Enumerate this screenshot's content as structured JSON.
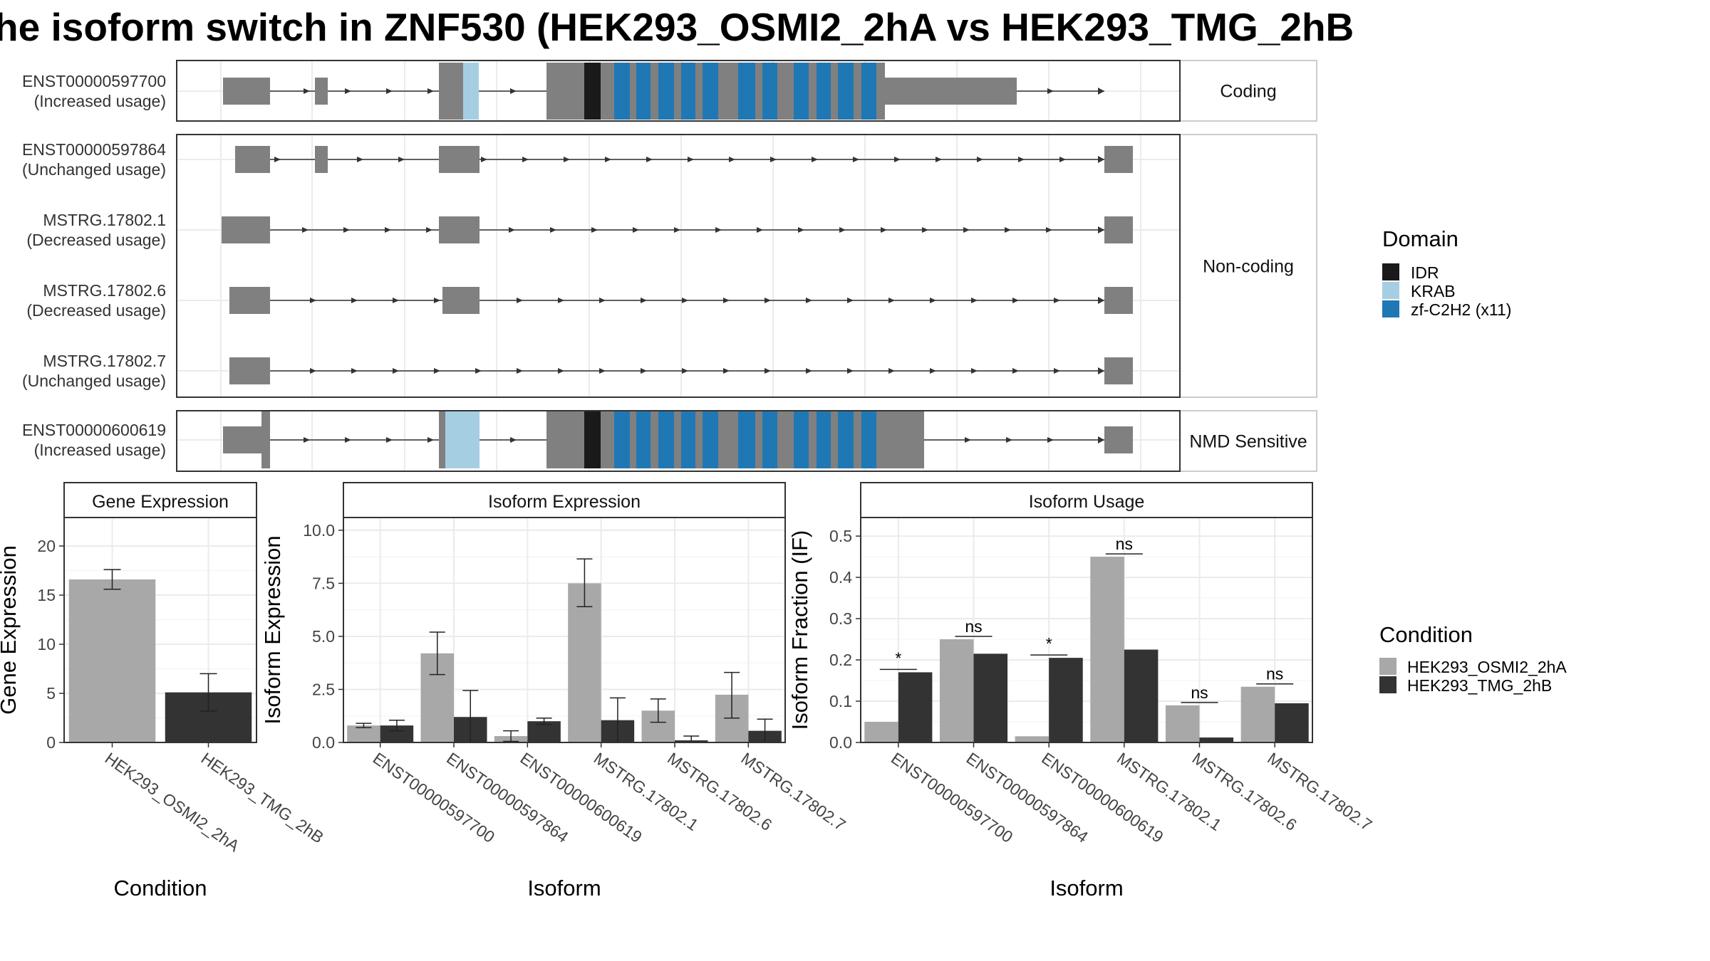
{
  "title": "he isoform switch in ZNF530 (HEK293_OSMI2_2hA vs HEK293_TMG_2hB",
  "colors": {
    "exon": "#808080",
    "intron": "#333333",
    "IDR": "#1a1a1a",
    "KRAB": "#a6cee3",
    "zf-C2H2 (x11)": "#1f78b4",
    "HEK293_OSMI2_2hA": "#a8a8a8",
    "HEK293_TMG_2hB": "#333333",
    "grid": "#ebebeb",
    "panel_border": "#333333"
  },
  "structure": {
    "facets": [
      {
        "label": "Coding",
        "isoforms": [
          {
            "id": "ENST00000597700",
            "usage": "(Increased usage)",
            "domain_kind": "coding"
          }
        ]
      },
      {
        "label": "Non-coding",
        "isoforms": [
          {
            "id": "ENST00000597864",
            "usage": "(Unchanged usage)",
            "domain_kind": "none"
          },
          {
            "id": "MSTRG.17802.1",
            "usage": "(Decreased usage)",
            "domain_kind": "none"
          },
          {
            "id": "MSTRG.17802.6",
            "usage": "(Decreased usage)",
            "domain_kind": "none"
          },
          {
            "id": "MSTRG.17802.7",
            "usage": "(Unchanged usage)",
            "domain_kind": "none"
          }
        ]
      },
      {
        "label": "NMD Sensitive",
        "isoforms": [
          {
            "id": "ENST00000600619",
            "usage": "(Increased usage)",
            "domain_kind": "nmd"
          }
        ]
      }
    ],
    "domain_legend": {
      "title": "Domain",
      "items": [
        "IDR",
        "KRAB",
        "zf-C2H2 (x11)"
      ]
    }
  },
  "condition_legend": {
    "title": "Condition",
    "items": [
      "HEK293_OSMI2_2hA",
      "HEK293_TMG_2hB"
    ]
  },
  "chart_data": [
    {
      "type": "bar",
      "title": "Gene Expression",
      "xlabel": "Condition",
      "ylabel": "Gene Expression",
      "categories": [
        "HEK293_OSMI2_2hA",
        "HEK293_TMG_2hB"
      ],
      "values": [
        16.6,
        5.1
      ],
      "error_low": [
        15.6,
        3.2
      ],
      "error_high": [
        17.6,
        7.0
      ],
      "ylim": [
        0,
        22.9
      ],
      "yticks": [
        0,
        5,
        10,
        15,
        20
      ],
      "grid": true
    },
    {
      "type": "bar",
      "title": "Isoform Expression",
      "xlabel": "Isoform",
      "ylabel": "Isoform Expression",
      "categories": [
        "ENST00000597700",
        "ENST00000597864",
        "ENST00000600619",
        "MSTRG.17802.1",
        "MSTRG.17802.6",
        "MSTRG.17802.7"
      ],
      "series": [
        {
          "name": "HEK293_OSMI2_2hA",
          "values": [
            0.8,
            4.2,
            0.3,
            7.5,
            1.5,
            2.25
          ],
          "error_low": [
            0.7,
            3.2,
            0.05,
            6.4,
            0.95,
            1.15
          ],
          "error_high": [
            0.9,
            5.2,
            0.55,
            8.65,
            2.05,
            3.3
          ]
        },
        {
          "name": "HEK293_TMG_2hB",
          "values": [
            0.8,
            1.2,
            1.0,
            1.05,
            0.1,
            0.55
          ],
          "error_low": [
            0.55,
            0.0,
            0.85,
            0.0,
            0.0,
            0.0
          ],
          "error_high": [
            1.05,
            2.45,
            1.15,
            2.1,
            0.3,
            1.1
          ]
        }
      ],
      "ylim": [
        0,
        10.6
      ],
      "yticks": [
        "0.0",
        "2.5",
        "5.0",
        "7.5",
        "10.0"
      ],
      "grid": true
    },
    {
      "type": "bar",
      "title": "Isoform Usage",
      "xlabel": "Isoform",
      "ylabel": "Isoform Fraction (IF)",
      "categories": [
        "ENST00000597700",
        "ENST00000597864",
        "ENST00000600619",
        "MSTRG.17802.1",
        "MSTRG.17802.6",
        "MSTRG.17802.7"
      ],
      "series": [
        {
          "name": "HEK293_OSMI2_2hA",
          "values": [
            0.05,
            0.25,
            0.015,
            0.45,
            0.09,
            0.135
          ]
        },
        {
          "name": "HEK293_TMG_2hB",
          "values": [
            0.17,
            0.215,
            0.205,
            0.225,
            0.012,
            0.095
          ]
        }
      ],
      "significance": [
        "*",
        "ns",
        "*",
        "ns",
        "ns",
        "ns"
      ],
      "ylim": [
        0,
        0.545
      ],
      "yticks": [
        "0.0",
        "0.1",
        "0.2",
        "0.3",
        "0.4",
        "0.5"
      ],
      "grid": true
    }
  ]
}
